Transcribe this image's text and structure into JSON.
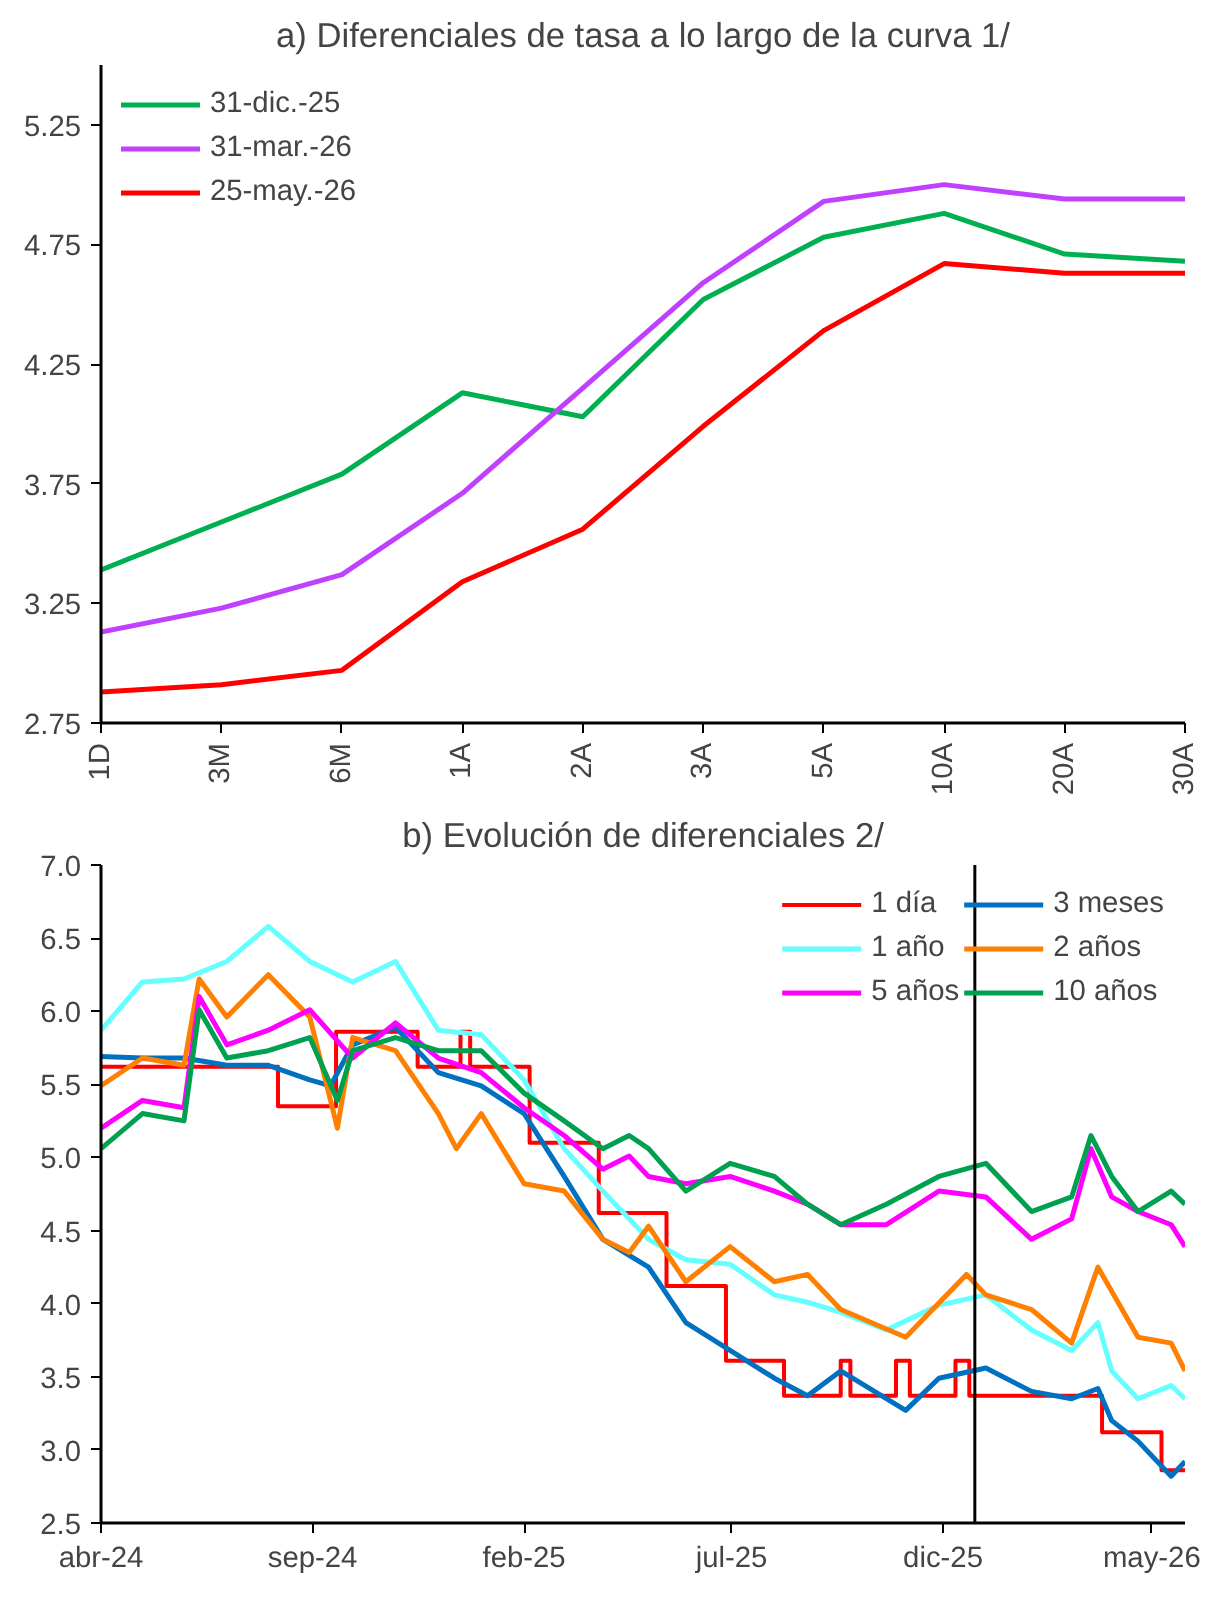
{
  "chart_data": [
    {
      "type": "line",
      "title": "a) Diferenciales de tasa a lo largo de la curva 1/",
      "categories": [
        "1D",
        "3M",
        "6M",
        "1A",
        "2A",
        "3A",
        "5A",
        "10A",
        "20A",
        "30A"
      ],
      "ylim": [
        2.75,
        5.5
      ],
      "yticks": [
        2.75,
        3.25,
        3.75,
        4.25,
        4.75,
        5.25
      ],
      "grid": false,
      "legend": "top left",
      "series": [
        {
          "name": "31-dic.-25",
          "color": "#00b050",
          "values": [
            3.39,
            3.59,
            3.79,
            4.13,
            4.03,
            4.52,
            4.78,
            4.88,
            4.71,
            4.68
          ]
        },
        {
          "name": "31-mar.-26",
          "color": "#bf40ff",
          "values": [
            3.13,
            3.23,
            3.37,
            3.71,
            4.15,
            4.59,
            4.93,
            5.0,
            4.94,
            4.94
          ]
        },
        {
          "name": "25-may.-26",
          "color": "#ff0000",
          "values": [
            2.88,
            2.91,
            2.97,
            3.34,
            3.56,
            3.99,
            4.39,
            4.67,
            4.63,
            4.63
          ]
        }
      ]
    },
    {
      "type": "line",
      "title": "b) Evolución de diferenciales 2/",
      "xlim": [
        "2024-04-01",
        "2026-05-25"
      ],
      "xticks": [
        {
          "value": "2024-04-01",
          "label": "abr-24"
        },
        {
          "value": "2024-09-01",
          "label": "sep-24"
        },
        {
          "value": "2025-02-01",
          "label": "feb-25"
        },
        {
          "value": "2025-07-01",
          "label": "jul-25"
        },
        {
          "value": "2025-12-01",
          "label": "dic-25"
        },
        {
          "value": "2026-05-01",
          "label": "may-26"
        }
      ],
      "ylim": [
        2.5,
        7.0
      ],
      "yticks": [
        {
          "value": 2.5,
          "label": "2.5"
        },
        {
          "value": 3.0,
          "label": "3.0"
        },
        {
          "value": 3.5,
          "label": "3.5"
        },
        {
          "value": 4.0,
          "label": "4.0"
        },
        {
          "value": 4.5,
          "label": "4.5"
        },
        {
          "value": 5.0,
          "label": "5.0"
        },
        {
          "value": 5.5,
          "label": "5.5"
        },
        {
          "value": 6.0,
          "label": "6.0"
        },
        {
          "value": 6.5,
          "label": "6.5"
        },
        {
          "value": 7.0,
          "label": "7.0"
        }
      ],
      "grid": false,
      "legend": "top right",
      "ref_lines": [
        {
          "axis": "x",
          "value": "2025-12-24",
          "color": "#000000"
        }
      ],
      "series": [
        {
          "name": "1 día",
          "type": "step",
          "color": "#ff0000",
          "x": [
            "2024-04-01",
            "2024-08-07",
            "2024-09-18",
            "2024-11-16",
            "2024-12-17",
            "2024-12-24",
            "2025-02-05",
            "2025-03-27",
            "2025-05-15",
            "2025-06-27",
            "2025-08-08",
            "2025-09-18",
            "2025-09-25",
            "2025-10-28",
            "2025-11-07",
            "2025-12-10",
            "2025-12-20",
            "2026-03-26",
            "2026-05-08",
            "2026-05-25"
          ],
          "values": [
            5.62,
            5.35,
            5.86,
            5.62,
            5.86,
            5.62,
            5.1,
            4.62,
            4.12,
            3.61,
            3.37,
            3.61,
            3.37,
            3.61,
            3.37,
            3.61,
            3.37,
            3.12,
            2.86,
            2.86
          ]
        },
        {
          "name": "3 meses",
          "color": "#0070c0",
          "x": [
            "2024-04-01",
            "2024-05-01",
            "2024-05-31",
            "2024-07-01",
            "2024-07-31",
            "2024-08-30",
            "2024-09-14",
            "2024-09-30",
            "2024-10-31",
            "2024-12-01",
            "2025-01-01",
            "2025-02-01",
            "2025-03-02",
            "2025-03-30",
            "2025-05-02",
            "2025-05-29",
            "2025-06-30",
            "2025-08-01",
            "2025-08-25",
            "2025-09-18",
            "2025-10-21",
            "2025-11-04",
            "2025-11-28",
            "2026-01-01",
            "2026-02-03",
            "2026-03-04",
            "2026-03-23",
            "2026-04-02",
            "2026-04-21",
            "2026-05-15",
            "2026-05-25"
          ],
          "values": [
            5.69,
            5.68,
            5.68,
            5.63,
            5.63,
            5.53,
            5.49,
            5.77,
            5.89,
            5.58,
            5.49,
            5.3,
            4.87,
            4.44,
            4.25,
            3.87,
            3.68,
            3.49,
            3.37,
            3.54,
            3.35,
            3.27,
            3.49,
            3.56,
            3.4,
            3.35,
            3.42,
            3.2,
            3.06,
            2.82,
            2.92
          ]
        },
        {
          "name": "1 año",
          "color": "#66ffff",
          "x": [
            "2024-04-01",
            "2024-05-01",
            "2024-05-31",
            "2024-07-01",
            "2024-07-31",
            "2024-08-30",
            "2024-09-30",
            "2024-10-31",
            "2024-12-01",
            "2025-01-01",
            "2025-02-01",
            "2025-03-02",
            "2025-03-30",
            "2025-05-02",
            "2025-05-29",
            "2025-06-30",
            "2025-08-01",
            "2025-08-25",
            "2025-09-18",
            "2025-10-21",
            "2025-11-28",
            "2026-01-01",
            "2026-02-03",
            "2026-03-04",
            "2026-03-23",
            "2026-04-02",
            "2026-04-21",
            "2026-05-15",
            "2026-05-25"
          ],
          "values": [
            5.87,
            6.2,
            6.22,
            6.34,
            6.58,
            6.34,
            6.2,
            6.34,
            5.87,
            5.84,
            5.53,
            5.06,
            4.77,
            4.44,
            4.3,
            4.27,
            4.06,
            4.01,
            3.94,
            3.82,
            3.99,
            4.06,
            3.82,
            3.68,
            3.87,
            3.54,
            3.35,
            3.44,
            3.35
          ]
        },
        {
          "name": "2 años",
          "color": "#ff8000",
          "x": [
            "2024-04-01",
            "2024-05-01",
            "2024-05-31",
            "2024-06-11",
            "2024-07-01",
            "2024-07-31",
            "2024-08-30",
            "2024-09-19",
            "2024-09-30",
            "2024-10-31",
            "2024-12-01",
            "2024-12-14",
            "2025-01-01",
            "2025-02-01",
            "2025-03-02",
            "2025-03-30",
            "2025-04-18",
            "2025-05-02",
            "2025-05-29",
            "2025-06-30",
            "2025-08-01",
            "2025-08-25",
            "2025-09-18",
            "2025-11-04",
            "2025-12-18",
            "2026-01-01",
            "2026-02-03",
            "2026-03-04",
            "2026-03-23",
            "2026-04-21",
            "2026-05-15",
            "2026-05-25"
          ],
          "values": [
            5.49,
            5.68,
            5.63,
            6.22,
            5.96,
            6.25,
            5.96,
            5.2,
            5.82,
            5.73,
            5.3,
            5.06,
            5.3,
            4.82,
            4.77,
            4.44,
            4.35,
            4.53,
            4.15,
            4.39,
            4.15,
            4.2,
            3.96,
            3.77,
            4.2,
            4.06,
            3.96,
            3.73,
            4.25,
            3.77,
            3.73,
            3.54
          ]
        },
        {
          "name": "5 años",
          "color": "#ff00ff",
          "x": [
            "2024-04-01",
            "2024-05-01",
            "2024-05-31",
            "2024-06-11",
            "2024-07-01",
            "2024-07-31",
            "2024-08-30",
            "2024-09-30",
            "2024-10-31",
            "2024-12-01",
            "2025-01-01",
            "2025-02-01",
            "2025-03-02",
            "2025-03-30",
            "2025-04-18",
            "2025-05-02",
            "2025-05-29",
            "2025-06-30",
            "2025-08-01",
            "2025-08-25",
            "2025-09-18",
            "2025-10-21",
            "2025-11-28",
            "2026-01-01",
            "2026-02-03",
            "2026-03-04",
            "2026-03-18",
            "2026-04-02",
            "2026-04-21",
            "2026-05-15",
            "2026-05-25"
          ],
          "values": [
            5.2,
            5.39,
            5.34,
            6.1,
            5.77,
            5.87,
            6.01,
            5.68,
            5.92,
            5.68,
            5.58,
            5.34,
            5.15,
            4.92,
            5.01,
            4.87,
            4.82,
            4.87,
            4.77,
            4.68,
            4.54,
            4.54,
            4.77,
            4.73,
            4.44,
            4.58,
            5.06,
            4.73,
            4.63,
            4.54,
            4.39
          ]
        },
        {
          "name": "10 años",
          "color": "#00a050",
          "x": [
            "2024-04-01",
            "2024-05-01",
            "2024-05-31",
            "2024-06-11",
            "2024-07-01",
            "2024-07-31",
            "2024-08-30",
            "2024-09-19",
            "2024-09-30",
            "2024-10-31",
            "2024-12-01",
            "2025-01-01",
            "2025-02-01",
            "2025-03-02",
            "2025-03-30",
            "2025-04-18",
            "2025-05-02",
            "2025-05-29",
            "2025-06-30",
            "2025-08-01",
            "2025-08-25",
            "2025-09-18",
            "2025-10-21",
            "2025-11-28",
            "2026-01-01",
            "2026-02-03",
            "2026-03-04",
            "2026-03-18",
            "2026-04-02",
            "2026-04-21",
            "2026-05-15",
            "2026-05-25"
          ],
          "values": [
            5.06,
            5.3,
            5.25,
            6.01,
            5.68,
            5.73,
            5.82,
            5.39,
            5.73,
            5.82,
            5.73,
            5.73,
            5.44,
            5.25,
            5.06,
            5.15,
            5.06,
            4.77,
            4.96,
            4.87,
            4.68,
            4.54,
            4.68,
            4.87,
            4.96,
            4.63,
            4.73,
            5.15,
            4.87,
            4.63,
            4.77,
            4.68
          ]
        }
      ]
    }
  ]
}
